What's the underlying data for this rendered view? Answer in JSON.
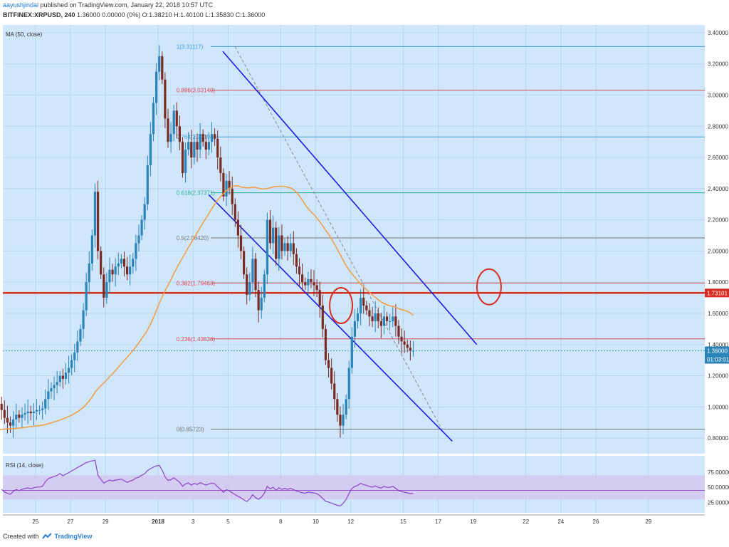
{
  "header": {
    "author": "aayushjindal",
    "published_text": "published on TradingView.com, January 22, 2018 10:57 UTC",
    "symbol": "BITFINEX:XRPUSD, 240",
    "ohlc_text": "1.36000 0.00000 (0%) O:1.38210 H:1.40100 L:1.35830 C:1.36000"
  },
  "footer": {
    "created_with": "Created with",
    "brand": "TradingView"
  },
  "colors": {
    "plot_bg": "#cfe6fb",
    "up": "#2a84b8",
    "down": "#7a2b22",
    "ma": "#f0a04b",
    "channel": "#1d1de0",
    "horizontal_red": "#d62d20",
    "circle": "#d62d20",
    "rsi_line": "#8e42c8",
    "rsi_band": "#d6c7ef"
  },
  "chart_data": {
    "type": "candlestick",
    "indicator_main": "MA (50, close)",
    "indicator_rsi": "RSI (14, close)",
    "ylim": [
      0.7,
      3.45
    ],
    "y_ticks": [
      "3.40000",
      "3.20000",
      "3.00000",
      "2.80000",
      "2.60000",
      "2.40000",
      "2.20000",
      "2.00000",
      "1.80000",
      "1.60000",
      "1.40000",
      "1.20000",
      "1.00000",
      "0.80000"
    ],
    "y_tick_values": [
      3.4,
      3.2,
      3.0,
      2.8,
      2.6,
      2.4,
      2.2,
      2.0,
      1.8,
      1.6,
      1.4,
      1.2,
      1.0,
      0.8
    ],
    "x_ticks": [
      {
        "label": "25",
        "day": -7
      },
      {
        "label": "27",
        "day": -5
      },
      {
        "label": "29",
        "day": -3
      },
      {
        "label": "2018",
        "day": 0
      },
      {
        "label": "3",
        "day": 2
      },
      {
        "label": "5",
        "day": 4
      },
      {
        "label": "8",
        "day": 7
      },
      {
        "label": "10",
        "day": 9
      },
      {
        "label": "12",
        "day": 11
      },
      {
        "label": "15",
        "day": 14
      },
      {
        "label": "17",
        "day": 16
      },
      {
        "label": "19",
        "day": 18
      },
      {
        "label": "22",
        "day": 21
      },
      {
        "label": "24",
        "day": 23
      },
      {
        "label": "26",
        "day": 25
      },
      {
        "label": "29",
        "day": 28
      }
    ],
    "fib_levels": [
      {
        "label": "1(3.31117)",
        "value": 3.31117,
        "color": "#3aa0d8"
      },
      {
        "label": "0.886(3.03140)",
        "value": 3.0314,
        "color": "#e0454f"
      },
      {
        "label": "0.764(2.73194)",
        "value": 2.73194,
        "color": "#3aa0d8"
      },
      {
        "label": "0.618(2.37371)",
        "value": 2.37371,
        "color": "#28b18f"
      },
      {
        "label": "0.5(2.08420)",
        "value": 2.0842,
        "color": "#777777"
      },
      {
        "label": "0.382(1.79463)",
        "value": 1.79463,
        "color": "#e0454f"
      },
      {
        "label": "0.236(1.43636)",
        "value": 1.43636,
        "color": "#e0454f"
      },
      {
        "label": "0(0.85723)",
        "value": 0.85723,
        "color": "#777777"
      }
    ],
    "horizontal_line": {
      "value": 1.73101,
      "label": "1.73101"
    },
    "last_price": {
      "value": 1.36,
      "label": "1.36000",
      "countdown": "01:03:01"
    },
    "rsi_ticks": [
      {
        "label": "75.00000",
        "value": 75
      },
      {
        "label": "50.00000",
        "value": 50
      },
      {
        "label": "25.00000",
        "value": 25
      }
    ],
    "rsi_band": [
      30,
      70
    ],
    "rsi_mid": 45,
    "closes": [
      1.02,
      0.98,
      0.93,
      0.9,
      0.88,
      0.92,
      0.95,
      0.93,
      0.95,
      0.96,
      0.97,
      0.96,
      0.97,
      0.98,
      0.98,
      0.99,
      1.05,
      1.1,
      1.12,
      1.14,
      1.16,
      1.2,
      1.18,
      1.22,
      1.25,
      1.3,
      1.35,
      1.42,
      1.5,
      1.62,
      1.8,
      1.92,
      2.1,
      2.38,
      2.0,
      1.85,
      1.7,
      1.8,
      1.88,
      1.85,
      1.9,
      1.92,
      1.95,
      1.9,
      1.85,
      1.9,
      1.95,
      2.05,
      2.1,
      2.2,
      2.3,
      2.55,
      2.75,
      2.95,
      3.15,
      3.25,
      3.1,
      2.85,
      2.7,
      2.75,
      2.9,
      2.8,
      2.7,
      2.5,
      2.65,
      2.7,
      2.6,
      2.7,
      2.65,
      2.75,
      2.7,
      2.65,
      2.7,
      2.75,
      2.72,
      2.6,
      2.5,
      2.35,
      2.45,
      2.4,
      2.3,
      2.2,
      2.1,
      2.0,
      1.85,
      1.72,
      1.8,
      1.95,
      1.75,
      1.62,
      1.7,
      1.85,
      2.2,
      2.05,
      2.15,
      1.95,
      2.1,
      2.0,
      2.05,
      2.0,
      2.05,
      1.98,
      1.9,
      1.85,
      1.8,
      1.78,
      1.82,
      1.8,
      1.78,
      1.75,
      1.65,
      1.5,
      1.3,
      1.25,
      1.15,
      1.05,
      0.95,
      0.88,
      0.95,
      1.05,
      1.25,
      1.45,
      1.55,
      1.6,
      1.7,
      1.65,
      1.62,
      1.58,
      1.55,
      1.6,
      1.55,
      1.52,
      1.58,
      1.55,
      1.55,
      1.58,
      1.52,
      1.45,
      1.42,
      1.4,
      1.38,
      1.36,
      1.36
    ]
  }
}
